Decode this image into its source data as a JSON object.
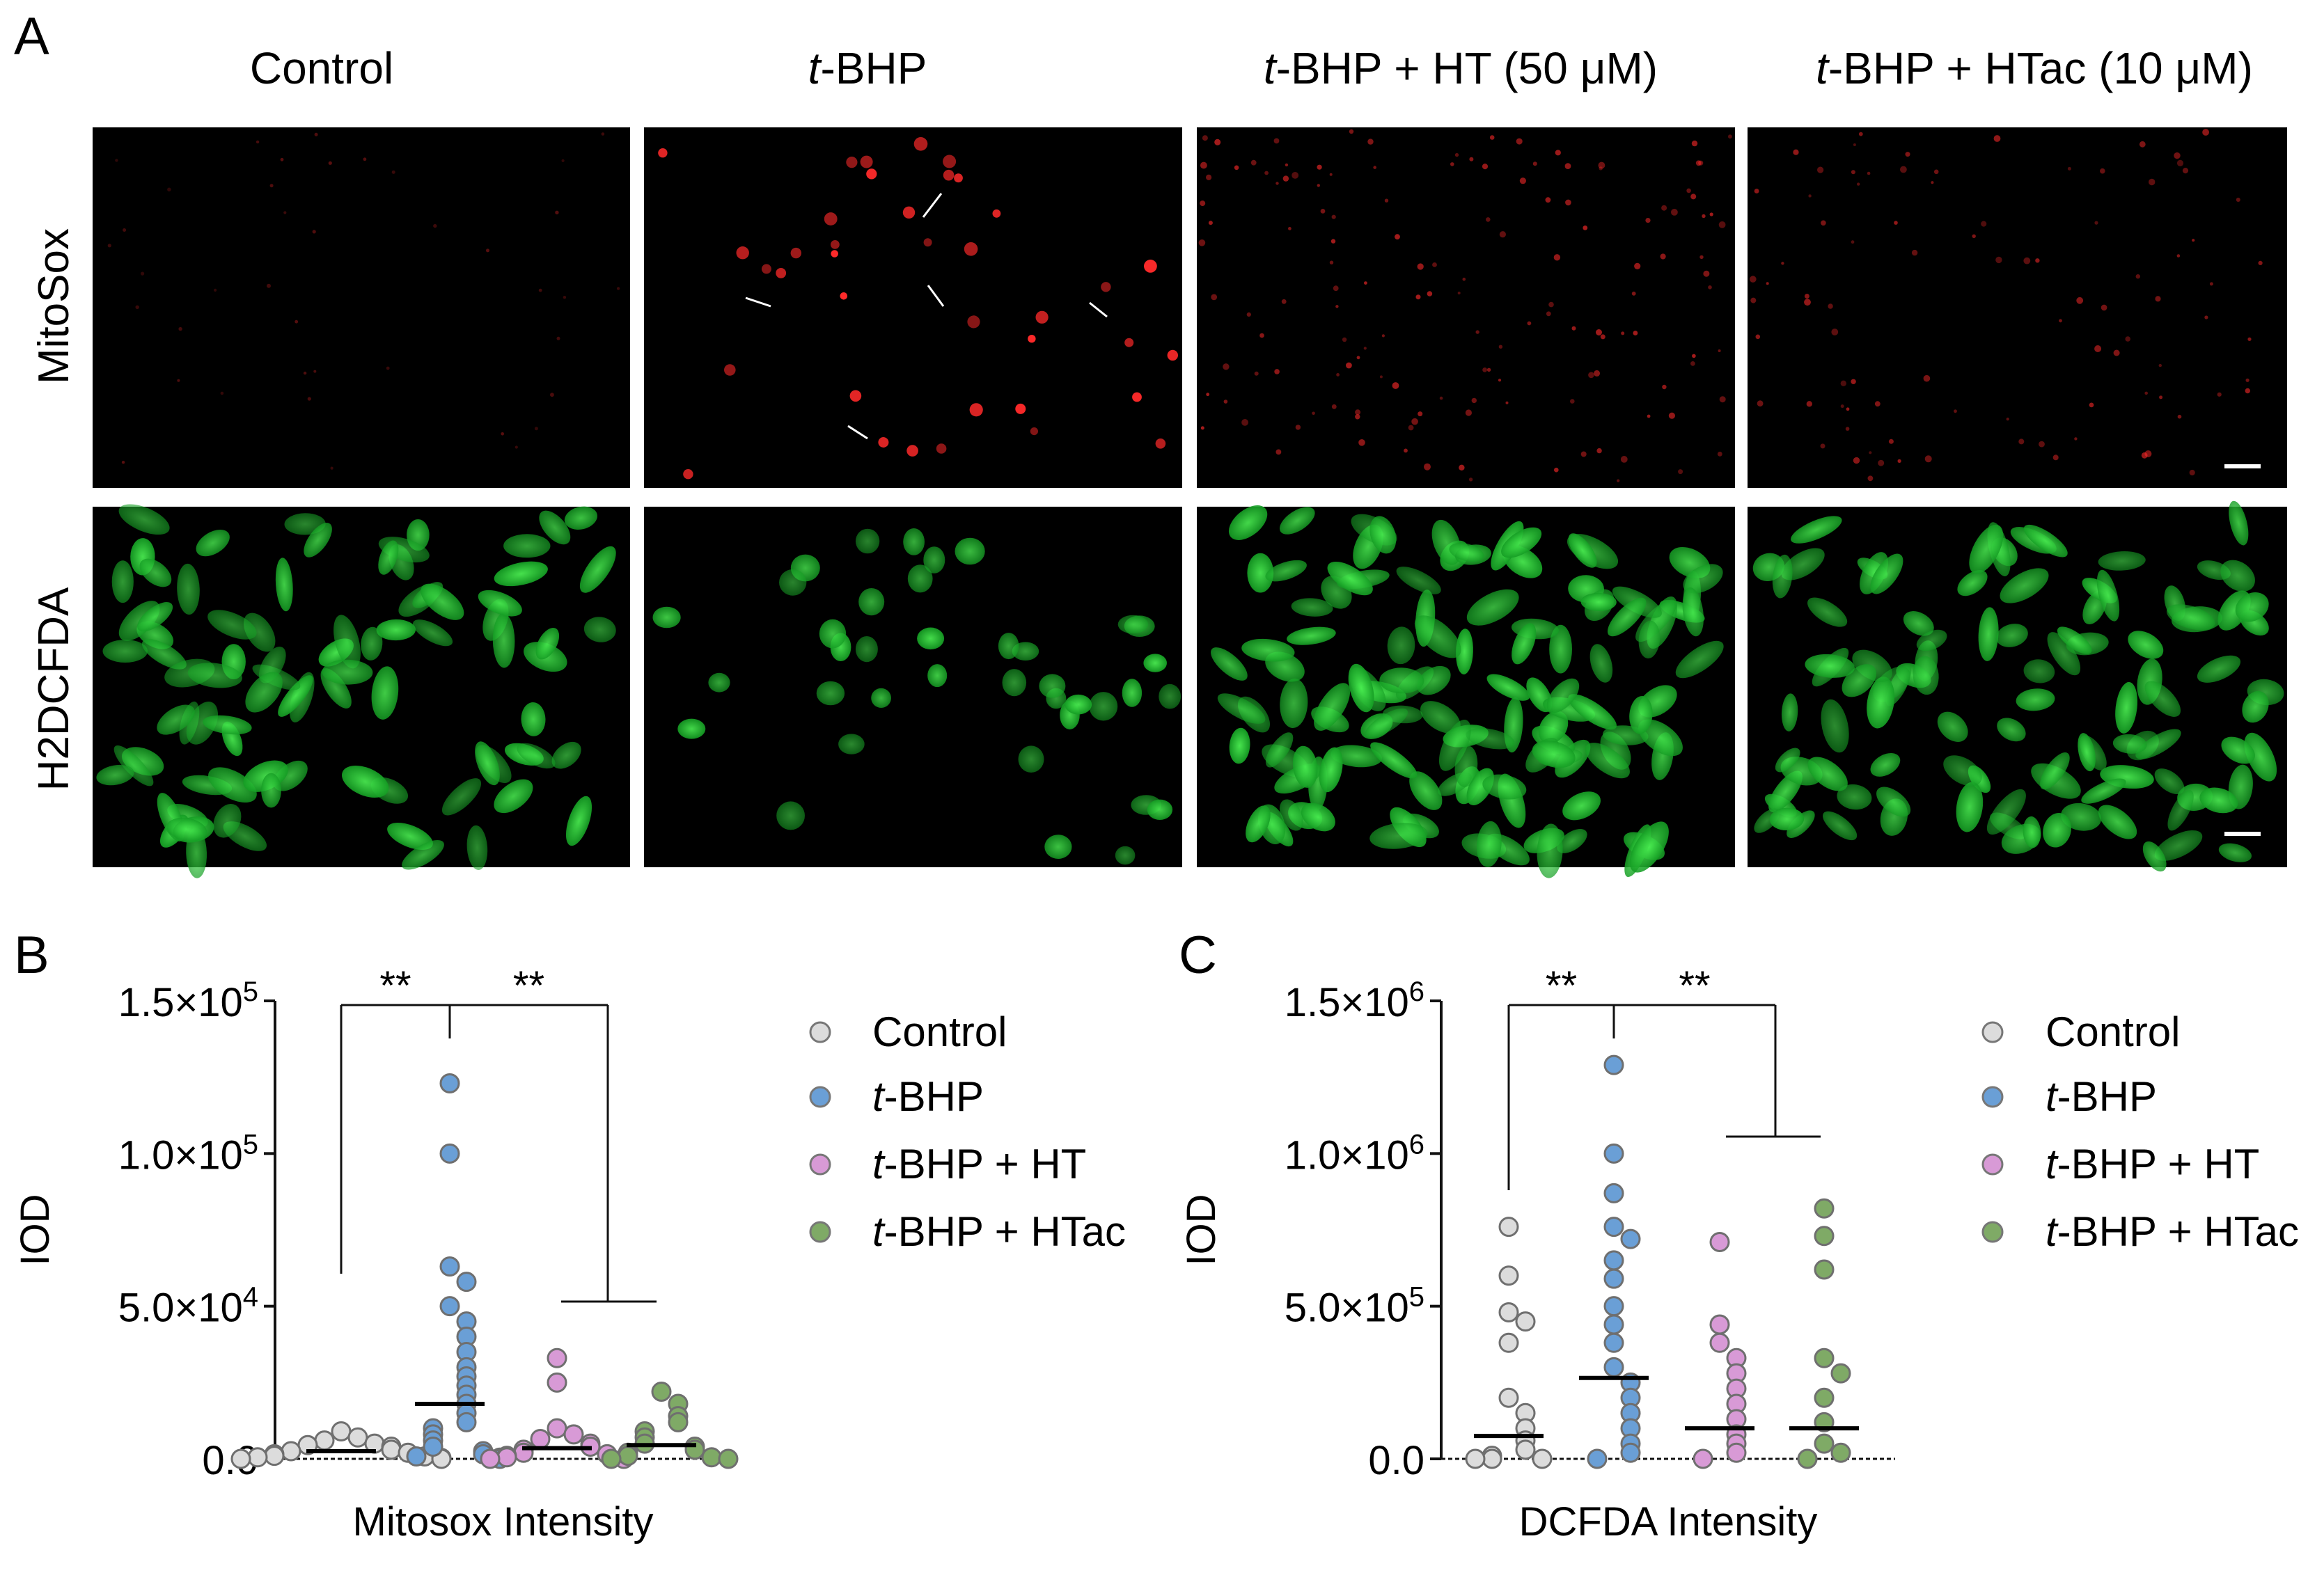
{
  "panel_a": {
    "letter": "A",
    "columns": [
      {
        "pre": "",
        "italic": "",
        "post": "Control"
      },
      {
        "pre": "",
        "italic": "t",
        "post": "-BHP"
      },
      {
        "pre": "",
        "italic": "t",
        "post": "-BHP + HT (50 μM)"
      },
      {
        "pre": "",
        "italic": "t",
        "post": "-BHP + HTac (10 μM)"
      }
    ],
    "rows": [
      "MitoSox",
      "H2DCFDA"
    ],
    "colors": {
      "mitosox": "#ff2a2a",
      "dcfda": "#22c832",
      "background": "#000000"
    }
  },
  "legend": [
    {
      "italic": "",
      "label": "Control",
      "color": "#dcdcdc"
    },
    {
      "italic": "t",
      "label": "-BHP",
      "color": "#6a9fd6"
    },
    {
      "italic": "t",
      "label": "-BHP + HT",
      "color": "#d89ad6"
    },
    {
      "italic": "t",
      "label": "-BHP + HTac",
      "color": "#7faa66"
    }
  ],
  "panel_b": {
    "letter": "B",
    "significance": [
      "**",
      "**"
    ],
    "chart_data": {
      "type": "scatter",
      "xlabel": "Mitosox Intensity",
      "ylabel": "IOD",
      "ylim": [
        0,
        150000
      ],
      "yticks": [
        {
          "value": 0,
          "label": "0.0",
          "exp": ""
        },
        {
          "value": 50000,
          "label": "5.0×10",
          "exp": "4"
        },
        {
          "value": 100000,
          "label": "1.0×10",
          "exp": "5"
        },
        {
          "value": 150000,
          "label": "1.5×10",
          "exp": "5"
        }
      ],
      "series": [
        {
          "name": "Control",
          "mean": 2500,
          "values": [
            9000,
            7000,
            6000,
            5000,
            4500,
            4000,
            3000,
            2500,
            2000,
            1500,
            1000,
            800,
            500,
            300,
            0,
            0
          ]
        },
        {
          "name": "t-BHP",
          "mean": 18000,
          "values": [
            123000,
            100000,
            63000,
            58000,
            50000,
            45000,
            40000,
            35000,
            30000,
            27000,
            24000,
            21000,
            18000,
            15000,
            12000,
            10000,
            8000,
            6000,
            4000,
            2500,
            1500,
            800,
            400,
            0
          ]
        },
        {
          "name": "t-BHP + HT",
          "mean": 3500,
          "values": [
            33000,
            25000,
            10000,
            8000,
            6500,
            5000,
            4000,
            3000,
            2000,
            1500,
            1000,
            500,
            0,
            0
          ]
        },
        {
          "name": "t-BHP + HTac",
          "mean": 4500,
          "values": [
            22000,
            18000,
            14000,
            12000,
            9000,
            7000,
            5000,
            4000,
            3000,
            2000,
            1000,
            500,
            0,
            0
          ]
        }
      ]
    }
  },
  "panel_c": {
    "letter": "C",
    "significance": [
      "**",
      "**"
    ],
    "chart_data": {
      "type": "scatter",
      "xlabel": "DCFDA Intensity",
      "ylabel": "IOD",
      "ylim": [
        0,
        1500000
      ],
      "yticks": [
        {
          "value": 0,
          "label": "0.0",
          "exp": ""
        },
        {
          "value": 500000,
          "label": "5.0×10",
          "exp": "5"
        },
        {
          "value": 1000000,
          "label": "1.0×10",
          "exp": "6"
        },
        {
          "value": 1500000,
          "label": "1.5×10",
          "exp": "6"
        }
      ],
      "series": [
        {
          "name": "Control",
          "mean": 75000,
          "values": [
            760000,
            600000,
            480000,
            450000,
            380000,
            200000,
            150000,
            100000,
            60000,
            30000,
            10000,
            0,
            0,
            0
          ]
        },
        {
          "name": "t-BHP",
          "mean": 265000,
          "values": [
            1290000,
            1000000,
            870000,
            760000,
            720000,
            650000,
            590000,
            500000,
            440000,
            380000,
            300000,
            250000,
            200000,
            150000,
            100000,
            50000,
            20000,
            0
          ]
        },
        {
          "name": "t-BHP + HT",
          "mean": 100000,
          "values": [
            710000,
            440000,
            380000,
            330000,
            280000,
            230000,
            180000,
            130000,
            80000,
            50000,
            20000,
            0
          ]
        },
        {
          "name": "t-BHP + HTac",
          "mean": 100000,
          "values": [
            820000,
            730000,
            620000,
            330000,
            280000,
            200000,
            120000,
            50000,
            20000,
            0
          ]
        }
      ]
    }
  }
}
